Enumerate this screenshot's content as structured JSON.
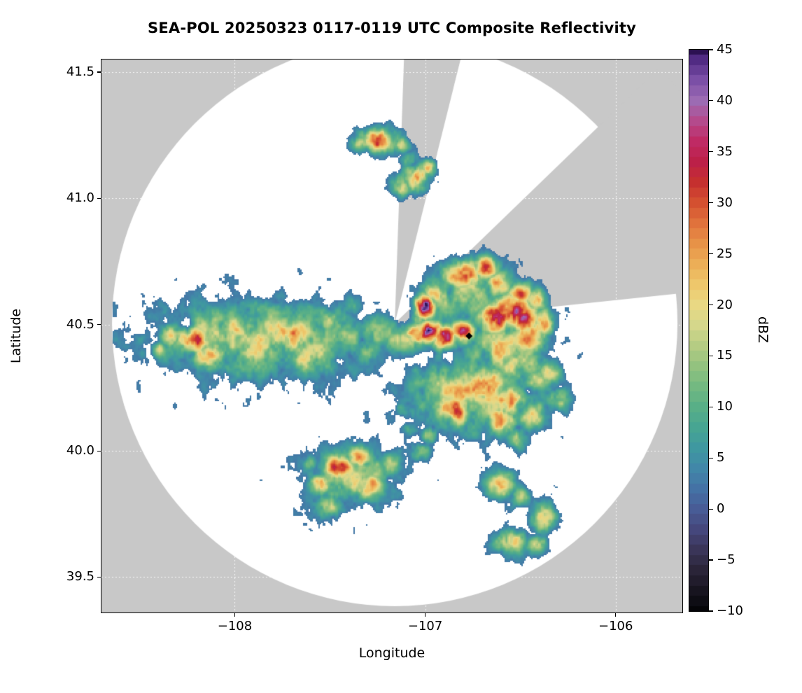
{
  "chart_data": {
    "type": "heatmap",
    "title": "SEA-POL 20250323 0117-0119 UTC Composite Reflectivity",
    "x_axis": {
      "label": "Longitude",
      "ticks": [
        {
          "v": -108,
          "label": "−108"
        },
        {
          "v": -107,
          "label": "−107"
        },
        {
          "v": -106,
          "label": "−106"
        }
      ]
    },
    "y_axis": {
      "label": "Latitude",
      "ticks": [
        {
          "v": 39.5,
          "label": "39.5"
        },
        {
          "v": 40.0,
          "label": "40.0"
        },
        {
          "v": 40.5,
          "label": "40.5"
        },
        {
          "v": 41.0,
          "label": "41.0"
        },
        {
          "v": 41.5,
          "label": "41.5"
        }
      ]
    },
    "xlim": [
      -108.7,
      -105.65
    ],
    "ylim": [
      39.36,
      41.55
    ],
    "grid": "dotted-white",
    "colors": {
      "outside": "#c8c8c8",
      "inside": "#ffffff"
    },
    "radar": {
      "center": [
        -107.16,
        40.505
      ],
      "radius_deg": 1.12,
      "blocked_sectors_azimuth_deg": [
        [
          2,
          14
        ],
        [
          46,
          84
        ]
      ],
      "marker": {
        "lon": -106.77,
        "lat": 40.455,
        "shape": "diamond",
        "color": "#000000"
      }
    },
    "colorbar": {
      "label": "dBZ",
      "min": -10,
      "max": 45,
      "position": "right",
      "ticks": [
        {
          "v": -10,
          "label": "−10"
        },
        {
          "v": -5,
          "label": "−5"
        },
        {
          "v": 0,
          "label": "0"
        },
        {
          "v": 5,
          "label": "5"
        },
        {
          "v": 10,
          "label": "10"
        },
        {
          "v": 15,
          "label": "15"
        },
        {
          "v": 20,
          "label": "20"
        },
        {
          "v": 25,
          "label": "25"
        },
        {
          "v": 30,
          "label": "30"
        },
        {
          "v": 35,
          "label": "35"
        },
        {
          "v": 40,
          "label": "40"
        },
        {
          "v": 45,
          "label": "45"
        }
      ],
      "stops": [
        [
          -10,
          "#050508"
        ],
        [
          -8,
          "#17141f"
        ],
        [
          -6,
          "#2a2438"
        ],
        [
          -4,
          "#3a3558"
        ],
        [
          -2,
          "#45477c"
        ],
        [
          0,
          "#485c96"
        ],
        [
          2,
          "#4472a5"
        ],
        [
          4,
          "#4187a8"
        ],
        [
          6,
          "#3f98a0"
        ],
        [
          8,
          "#47a592"
        ],
        [
          10,
          "#58af87"
        ],
        [
          12,
          "#73b981"
        ],
        [
          14,
          "#93c27f"
        ],
        [
          16,
          "#b5cc83"
        ],
        [
          18,
          "#d5d78b"
        ],
        [
          20,
          "#e9d883"
        ],
        [
          22,
          "#eec76b"
        ],
        [
          24,
          "#ecae57"
        ],
        [
          26,
          "#e79247"
        ],
        [
          28,
          "#e0723c"
        ],
        [
          30,
          "#d45030"
        ],
        [
          32,
          "#c5302f"
        ],
        [
          34,
          "#bc2048"
        ],
        [
          36,
          "#bf2a64"
        ],
        [
          38,
          "#b44a8c"
        ],
        [
          40,
          "#9c6bb3"
        ],
        [
          42,
          "#7b4fa6"
        ],
        [
          44,
          "#512b83"
        ],
        [
          45,
          "#2c1152"
        ]
      ]
    },
    "cells": [
      [
        -107.85,
        40.44,
        0.45,
        0.12,
        17
      ],
      [
        -108.05,
        40.47,
        0.18,
        0.08,
        19
      ],
      [
        -108.22,
        40.44,
        0.1,
        0.05,
        25
      ],
      [
        -108.33,
        40.46,
        0.06,
        0.04,
        21
      ],
      [
        -108.4,
        40.4,
        0.04,
        0.03,
        15
      ],
      [
        -108.13,
        40.37,
        0.08,
        0.05,
        22
      ],
      [
        -107.72,
        40.46,
        0.12,
        0.07,
        24
      ],
      [
        -107.6,
        40.38,
        0.12,
        0.07,
        21
      ],
      [
        -107.52,
        40.52,
        0.08,
        0.05,
        16
      ],
      [
        -107.42,
        40.47,
        0.1,
        0.06,
        14
      ],
      [
        -107.38,
        40.58,
        0.05,
        0.04,
        9
      ],
      [
        -107.9,
        40.56,
        0.08,
        0.04,
        14
      ],
      [
        -107.3,
        40.4,
        0.07,
        0.05,
        12
      ],
      [
        -107.25,
        40.47,
        0.1,
        0.06,
        13
      ],
      [
        -107.1,
        40.44,
        0.1,
        0.05,
        18
      ],
      [
        -107.05,
        40.46,
        0.06,
        0.04,
        26
      ],
      [
        -106.98,
        40.47,
        0.07,
        0.04,
        31
      ],
      [
        -106.9,
        40.45,
        0.06,
        0.04,
        33
      ],
      [
        -106.8,
        40.47,
        0.06,
        0.04,
        28
      ],
      [
        -107.0,
        40.57,
        0.05,
        0.04,
        40
      ],
      [
        -106.95,
        40.62,
        0.05,
        0.04,
        20
      ],
      [
        -107.03,
        40.52,
        0.04,
        0.03,
        12
      ],
      [
        -106.9,
        40.6,
        0.12,
        0.08,
        14
      ],
      [
        -106.75,
        40.62,
        0.12,
        0.09,
        16
      ],
      [
        -106.8,
        40.7,
        0.09,
        0.05,
        28
      ],
      [
        -106.68,
        40.72,
        0.06,
        0.04,
        30
      ],
      [
        -106.62,
        40.66,
        0.07,
        0.05,
        22
      ],
      [
        -106.55,
        40.55,
        0.09,
        0.06,
        36
      ],
      [
        -106.63,
        40.52,
        0.08,
        0.05,
        38
      ],
      [
        -106.48,
        40.52,
        0.07,
        0.05,
        30
      ],
      [
        -106.5,
        40.62,
        0.06,
        0.04,
        24
      ],
      [
        -106.42,
        40.6,
        0.05,
        0.04,
        20
      ],
      [
        -106.6,
        40.42,
        0.15,
        0.1,
        18
      ],
      [
        -106.45,
        40.45,
        0.1,
        0.08,
        20
      ],
      [
        -106.38,
        40.5,
        0.06,
        0.05,
        22
      ],
      [
        -106.5,
        40.35,
        0.12,
        0.08,
        17
      ],
      [
        -106.35,
        40.3,
        0.06,
        0.05,
        16
      ],
      [
        -106.75,
        40.22,
        0.28,
        0.12,
        18
      ],
      [
        -106.68,
        40.26,
        0.1,
        0.06,
        28
      ],
      [
        -106.55,
        40.2,
        0.08,
        0.06,
        26
      ],
      [
        -106.85,
        40.16,
        0.09,
        0.06,
        25
      ],
      [
        -106.6,
        40.12,
        0.08,
        0.05,
        22
      ],
      [
        -106.45,
        40.14,
        0.07,
        0.05,
        20
      ],
      [
        -106.42,
        40.28,
        0.06,
        0.04,
        18
      ],
      [
        -106.3,
        40.2,
        0.05,
        0.04,
        17
      ],
      [
        -106.95,
        40.28,
        0.1,
        0.06,
        16
      ],
      [
        -107.0,
        40.18,
        0.06,
        0.04,
        12
      ],
      [
        -106.52,
        40.05,
        0.05,
        0.04,
        16
      ],
      [
        -107.08,
        40.08,
        0.04,
        0.03,
        10
      ],
      [
        -107.12,
        40.16,
        0.04,
        0.03,
        8
      ],
      [
        -107.02,
        40.0,
        0.05,
        0.03,
        14
      ],
      [
        -106.98,
        40.06,
        0.04,
        0.03,
        18
      ],
      [
        -107.4,
        39.9,
        0.18,
        0.09,
        18
      ],
      [
        -107.45,
        39.93,
        0.07,
        0.05,
        29
      ],
      [
        -107.3,
        39.86,
        0.07,
        0.05,
        24
      ],
      [
        -107.55,
        39.87,
        0.06,
        0.04,
        20
      ],
      [
        -107.5,
        39.78,
        0.07,
        0.04,
        17
      ],
      [
        -107.35,
        39.97,
        0.06,
        0.04,
        22
      ],
      [
        -107.18,
        39.95,
        0.05,
        0.04,
        14
      ],
      [
        -107.6,
        39.95,
        0.04,
        0.03,
        12
      ],
      [
        -106.6,
        39.86,
        0.07,
        0.05,
        22
      ],
      [
        -106.5,
        39.82,
        0.05,
        0.04,
        16
      ],
      [
        -106.38,
        39.74,
        0.06,
        0.05,
        23
      ],
      [
        -106.55,
        39.64,
        0.08,
        0.04,
        21
      ],
      [
        -106.42,
        39.63,
        0.05,
        0.03,
        17
      ],
      [
        -107.25,
        41.23,
        0.09,
        0.04,
        28
      ],
      [
        -107.33,
        41.22,
        0.05,
        0.03,
        20
      ],
      [
        -107.12,
        41.21,
        0.04,
        0.03,
        17
      ],
      [
        -107.08,
        41.15,
        0.04,
        0.03,
        15
      ],
      [
        -107.05,
        41.08,
        0.06,
        0.05,
        29
      ],
      [
        -107.12,
        41.05,
        0.05,
        0.04,
        20
      ],
      [
        -106.98,
        41.12,
        0.04,
        0.03,
        18
      ]
    ]
  }
}
